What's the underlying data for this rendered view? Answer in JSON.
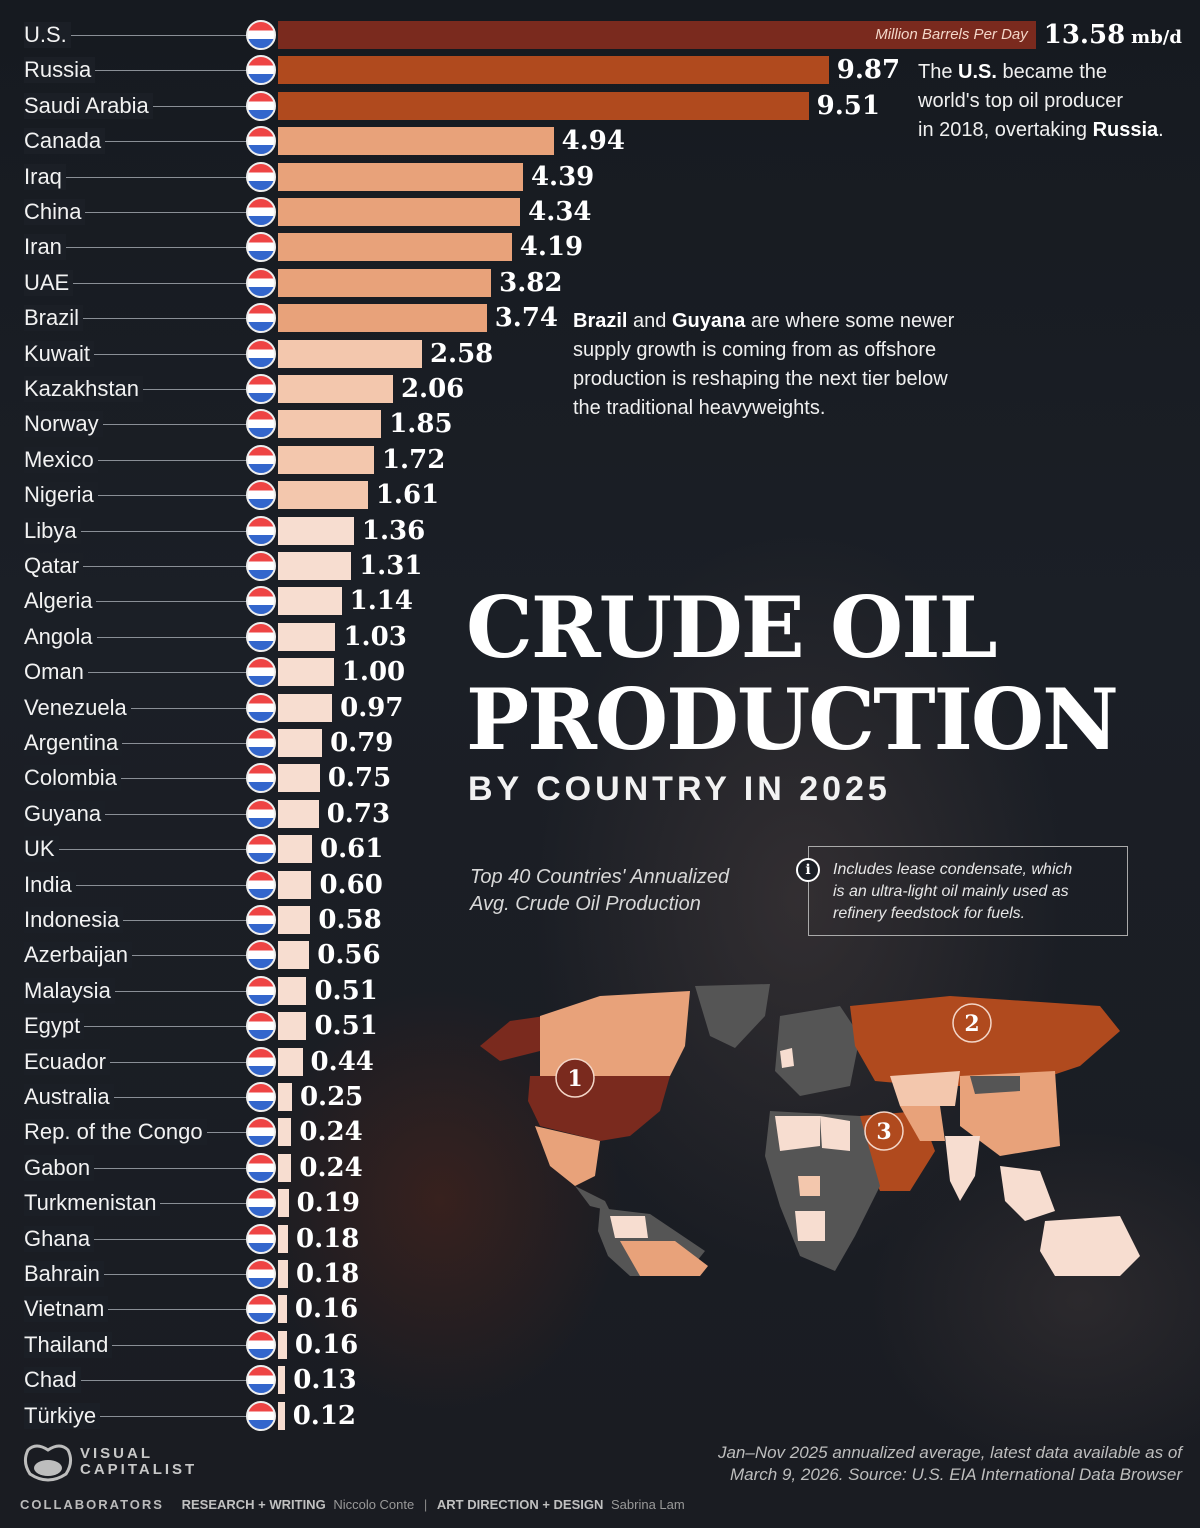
{
  "title": {
    "line1": "CRUDE OIL",
    "line2": "PRODUCTION",
    "subtitle": "BY COUNTRY IN 2025"
  },
  "caption": {
    "line1": "Top 40 Countries' Annualized",
    "line2": "Avg. Crude Oil Production"
  },
  "info_note": {
    "icon": "info-icon",
    "line1": "Includes lease condensate, which",
    "line2": "is an ultra-light oil mainly used as",
    "line3": "refinery feedstock for fuels."
  },
  "unit_tag": "Million Barrels Per Day",
  "unit_suffix": "mb/d",
  "annotations": {
    "us": {
      "pre": "The ",
      "b1": "U.S.",
      "mid1": " became the",
      "line2": "world's top oil producer",
      "line3_pre": "in 2018, overtaking ",
      "b2": "Russia",
      "line3_post": "."
    },
    "brazil": {
      "b1": "Brazil",
      "mid": " and ",
      "b2": "Guyana",
      "line1_post": " are where some newer",
      "line2": "supply growth is coming from as offshore",
      "line3": "production is reshaping the next tier below",
      "line4": "the traditional heavyweights."
    }
  },
  "map": {
    "markers": [
      {
        "rank": "1",
        "country": "U.S."
      },
      {
        "rank": "2",
        "country": "Russia"
      },
      {
        "rank": "3",
        "country": "Saudi Arabia"
      }
    ]
  },
  "source": {
    "line1": "Jan–Nov 2025 annualized average, latest data available as of",
    "line2": "March 9, 2026. Source: U.S. EIA International Data Browser"
  },
  "brand": {
    "line1": "VISUAL",
    "line2": "CAPITALIST"
  },
  "credits": {
    "heading": "COLLABORATORS",
    "role1": "RESEARCH + WRITING",
    "name1": "Niccolo Conte",
    "separator": "|",
    "role2": "ART DIRECTION + DESIGN",
    "name2": "Sabrina Lam"
  },
  "colors": {
    "tier1": "#7a2a1e",
    "tier2": "#b04a1e",
    "tier3": "#e8a27a",
    "tier4": "#f3c7ad",
    "tier5": "#f7ddd0",
    "background": "#1b1f26"
  },
  "chart_data": {
    "type": "bar",
    "orientation": "horizontal",
    "title": "Crude Oil Production by Country in 2025",
    "subtitle": "Top 40 Countries' Annualized Avg. Crude Oil Production",
    "xlabel": "Million Barrels Per Day (mb/d)",
    "ylabel": "",
    "xlim": [
      0,
      13.58
    ],
    "grid": false,
    "legend": "none",
    "categories": [
      "U.S.",
      "Russia",
      "Saudi Arabia",
      "Canada",
      "Iraq",
      "China",
      "Iran",
      "UAE",
      "Brazil",
      "Kuwait",
      "Kazakhstan",
      "Norway",
      "Mexico",
      "Nigeria",
      "Libya",
      "Qatar",
      "Algeria",
      "Angola",
      "Oman",
      "Venezuela",
      "Argentina",
      "Colombia",
      "Guyana",
      "UK",
      "India",
      "Indonesia",
      "Azerbaijan",
      "Malaysia",
      "Egypt",
      "Ecuador",
      "Australia",
      "Rep. of the Congo",
      "Gabon",
      "Turkmenistan",
      "Ghana",
      "Bahrain",
      "Vietnam",
      "Thailand",
      "Chad",
      "Türkiye"
    ],
    "values": [
      13.58,
      9.87,
      9.51,
      4.94,
      4.39,
      4.34,
      4.19,
      3.82,
      3.74,
      2.58,
      2.06,
      1.85,
      1.72,
      1.61,
      1.36,
      1.31,
      1.14,
      1.03,
      1.0,
      0.97,
      0.79,
      0.75,
      0.73,
      0.61,
      0.6,
      0.58,
      0.56,
      0.51,
      0.51,
      0.44,
      0.25,
      0.24,
      0.24,
      0.19,
      0.18,
      0.18,
      0.16,
      0.16,
      0.13,
      0.12
    ],
    "value_labels": [
      "13.58",
      "9.87",
      "9.51",
      "4.94",
      "4.39",
      "4.34",
      "4.19",
      "3.82",
      "3.74",
      "2.58",
      "2.06",
      "1.85",
      "1.72",
      "1.61",
      "1.36",
      "1.31",
      "1.14",
      "1.03",
      "1.00",
      "0.97",
      "0.79",
      "0.75",
      "0.73",
      "0.61",
      "0.60",
      "0.58",
      "0.56",
      "0.51",
      "0.51",
      "0.44",
      "0.25",
      "0.24",
      "0.24",
      "0.19",
      "0.18",
      "0.18",
      "0.16",
      "0.16",
      "0.13",
      "0.12"
    ],
    "annotations": [
      "The U.S. became the world's top oil producer in 2018, overtaking Russia.",
      "Brazil and Guyana are where some newer supply growth is coming from as offshore production is reshaping the next tier below the traditional heavyweights."
    ]
  },
  "rows": [
    {
      "name": "U.S.",
      "value": "13.58",
      "flag": "us-flag-icon"
    },
    {
      "name": "Russia",
      "value": "9.87",
      "flag": "russia-flag-icon"
    },
    {
      "name": "Saudi Arabia",
      "value": "9.51",
      "flag": "saudi-arabia-flag-icon"
    },
    {
      "name": "Canada",
      "value": "4.94",
      "flag": "canada-flag-icon"
    },
    {
      "name": "Iraq",
      "value": "4.39",
      "flag": "iraq-flag-icon"
    },
    {
      "name": "China",
      "value": "4.34",
      "flag": "china-flag-icon"
    },
    {
      "name": "Iran",
      "value": "4.19",
      "flag": "iran-flag-icon"
    },
    {
      "name": "UAE",
      "value": "3.82",
      "flag": "uae-flag-icon"
    },
    {
      "name": "Brazil",
      "value": "3.74",
      "flag": "brazil-flag-icon"
    },
    {
      "name": "Kuwait",
      "value": "2.58",
      "flag": "kuwait-flag-icon"
    },
    {
      "name": "Kazakhstan",
      "value": "2.06",
      "flag": "kazakhstan-flag-icon"
    },
    {
      "name": "Norway",
      "value": "1.85",
      "flag": "norway-flag-icon"
    },
    {
      "name": "Mexico",
      "value": "1.72",
      "flag": "mexico-flag-icon"
    },
    {
      "name": "Nigeria",
      "value": "1.61",
      "flag": "nigeria-flag-icon"
    },
    {
      "name": "Libya",
      "value": "1.36",
      "flag": "libya-flag-icon"
    },
    {
      "name": "Qatar",
      "value": "1.31",
      "flag": "qatar-flag-icon"
    },
    {
      "name": "Algeria",
      "value": "1.14",
      "flag": "algeria-flag-icon"
    },
    {
      "name": "Angola",
      "value": "1.03",
      "flag": "angola-flag-icon"
    },
    {
      "name": "Oman",
      "value": "1.00",
      "flag": "oman-flag-icon"
    },
    {
      "name": "Venezuela",
      "value": "0.97",
      "flag": "venezuela-flag-icon"
    },
    {
      "name": "Argentina",
      "value": "0.79",
      "flag": "argentina-flag-icon"
    },
    {
      "name": "Colombia",
      "value": "0.75",
      "flag": "colombia-flag-icon"
    },
    {
      "name": "Guyana",
      "value": "0.73",
      "flag": "guyana-flag-icon"
    },
    {
      "name": "UK",
      "value": "0.61",
      "flag": "uk-flag-icon"
    },
    {
      "name": "India",
      "value": "0.60",
      "flag": "india-flag-icon"
    },
    {
      "name": "Indonesia",
      "value": "0.58",
      "flag": "indonesia-flag-icon"
    },
    {
      "name": "Azerbaijan",
      "value": "0.56",
      "flag": "azerbaijan-flag-icon"
    },
    {
      "name": "Malaysia",
      "value": "0.51",
      "flag": "malaysia-flag-icon"
    },
    {
      "name": "Egypt",
      "value": "0.51",
      "flag": "egypt-flag-icon"
    },
    {
      "name": "Ecuador",
      "value": "0.44",
      "flag": "ecuador-flag-icon"
    },
    {
      "name": "Australia",
      "value": "0.25",
      "flag": "australia-flag-icon"
    },
    {
      "name": "Rep. of the Congo",
      "value": "0.24",
      "flag": "congo-flag-icon"
    },
    {
      "name": "Gabon",
      "value": "0.24",
      "flag": "gabon-flag-icon"
    },
    {
      "name": "Turkmenistan",
      "value": "0.19",
      "flag": "turkmenistan-flag-icon"
    },
    {
      "name": "Ghana",
      "value": "0.18",
      "flag": "ghana-flag-icon"
    },
    {
      "name": "Bahrain",
      "value": "0.18",
      "flag": "bahrain-flag-icon"
    },
    {
      "name": "Vietnam",
      "value": "0.16",
      "flag": "vietnam-flag-icon"
    },
    {
      "name": "Thailand",
      "value": "0.16",
      "flag": "thailand-flag-icon"
    },
    {
      "name": "Chad",
      "value": "0.13",
      "flag": "chad-flag-icon"
    },
    {
      "name": "Türkiye",
      "value": "0.12",
      "flag": "turkiye-flag-icon"
    }
  ]
}
